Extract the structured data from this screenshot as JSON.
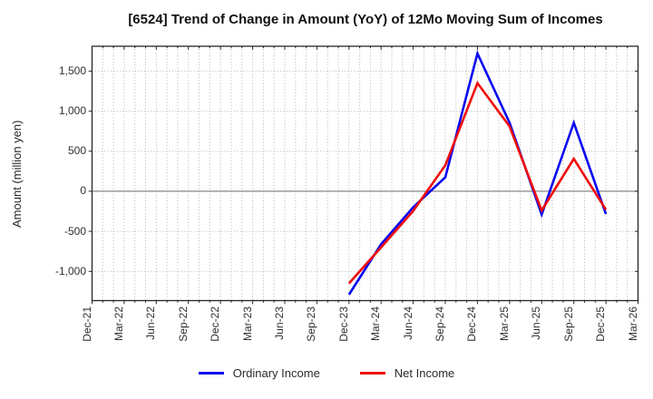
{
  "title": "[6524]  Trend of Change in Amount (YoY) of 12Mo Moving Sum of Incomes",
  "chart_data": {
    "type": "line",
    "title": "[6524]  Trend of Change in Amount (YoY) of 12Mo Moving Sum of Incomes",
    "xlabel": "",
    "ylabel": "Amount (million yen)",
    "grid": true,
    "legend_position": "bottom-center",
    "x_tick_labels": [
      "Dec-21",
      "Mar-22",
      "Jun-22",
      "Sep-22",
      "Dec-22",
      "Mar-23",
      "Jun-23",
      "Sep-23",
      "Dec-23",
      "Mar-24",
      "Jun-24",
      "Sep-24",
      "Dec-24",
      "Mar-25",
      "Jun-25",
      "Sep-25",
      "Dec-25",
      "Mar-26"
    ],
    "months_per_labeled_tick": 3,
    "total_months": 51,
    "minor_vertical_gridlines": "monthly",
    "ylim": [
      -1365,
      1810
    ],
    "y_ticks": [
      {
        "value": 1500,
        "label": "1,500"
      },
      {
        "value": 1000,
        "label": "1,000"
      },
      {
        "value": 500,
        "label": "500"
      },
      {
        "value": 0,
        "label": "0"
      },
      {
        "value": -500,
        "label": "-500"
      },
      {
        "value": -1000,
        "label": "-1,000"
      }
    ],
    "zero_line": true,
    "series": [
      {
        "name": "Ordinary Income",
        "color": "#0808f0",
        "x_labels": [
          "Dec-23",
          "Mar-24",
          "Jun-24",
          "Sep-24",
          "Dec-24",
          "Mar-25",
          "Jun-25",
          "Sep-25",
          "Dec-25"
        ],
        "x_months": [
          24,
          27,
          30,
          33,
          36,
          39,
          42,
          45,
          48
        ],
        "values": [
          -1290,
          -660,
          -200,
          175,
          1720,
          855,
          -290,
          855,
          -285
        ]
      },
      {
        "name": "Net Income",
        "color": "#f00d0d",
        "x_labels": [
          "Dec-23",
          "Mar-24",
          "Jun-24",
          "Sep-24",
          "Dec-24",
          "Mar-25",
          "Jun-25",
          "Sep-25",
          "Dec-25"
        ],
        "x_months": [
          24,
          27,
          30,
          33,
          36,
          39,
          42,
          45,
          48
        ],
        "values": [
          -1150,
          -700,
          -245,
          325,
          1350,
          810,
          -240,
          405,
          -230
        ]
      }
    ],
    "colors": {
      "grid": "#b4b4b4",
      "zero_line": "#878787",
      "spine": "#262626",
      "tick_label": "#303030"
    }
  }
}
